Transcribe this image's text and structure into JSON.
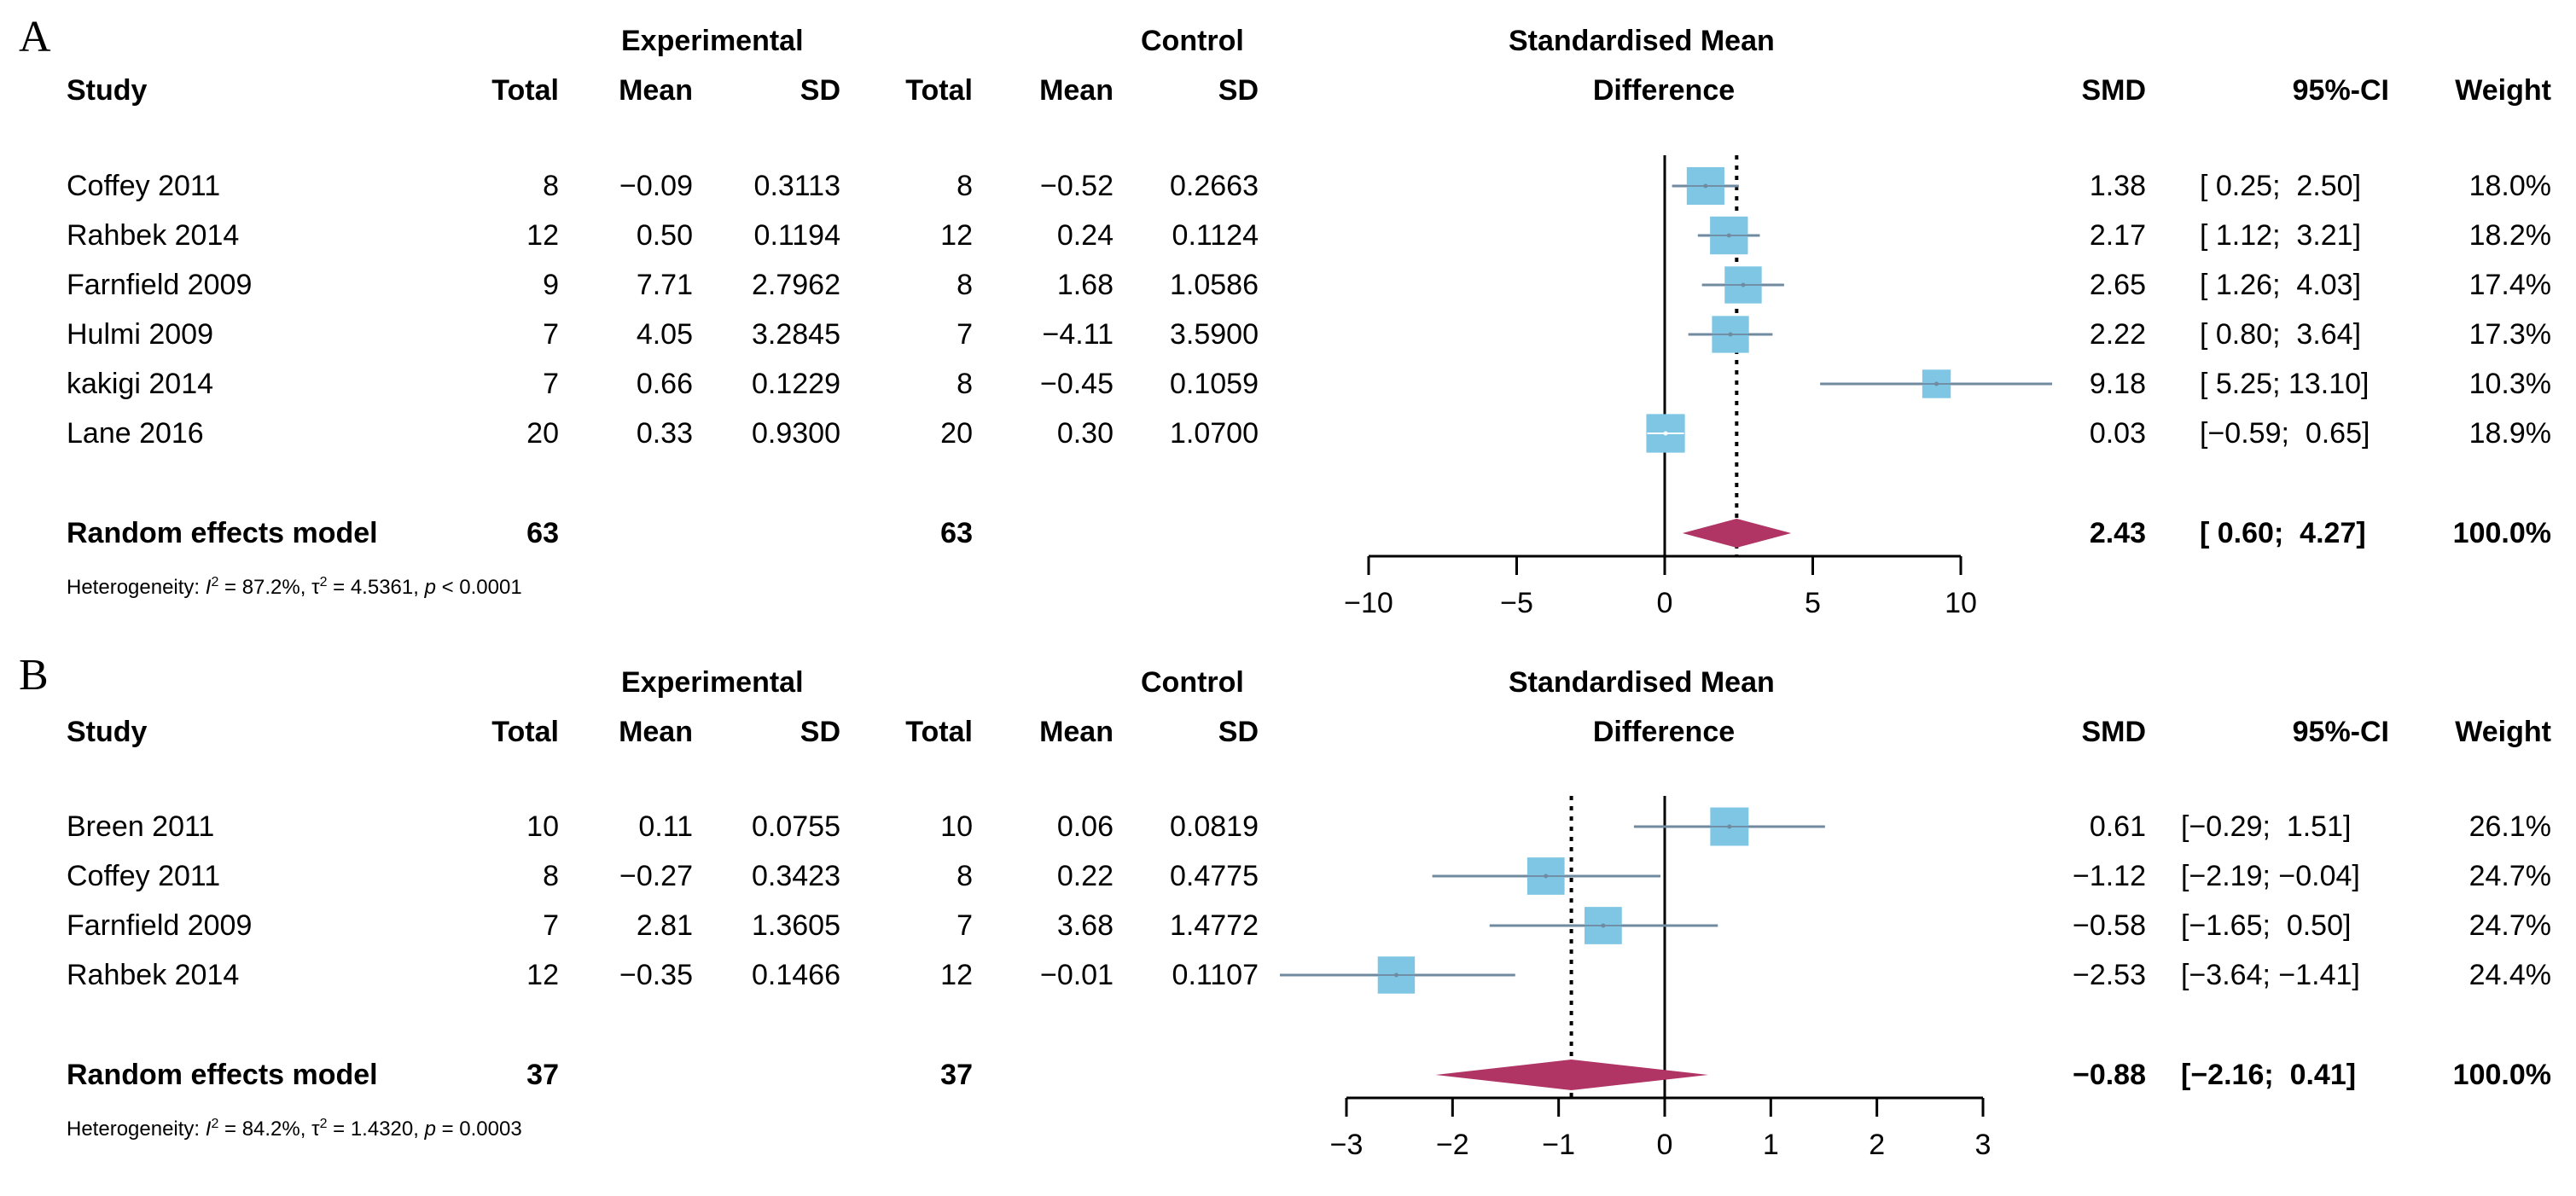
{
  "figure": {
    "letters": [
      "A",
      "B"
    ]
  },
  "headers": {
    "experimental": "Experimental",
    "control": "Control",
    "smd_title_1": "Standardised Mean",
    "smd_title_2": "Difference",
    "study": "Study",
    "total": "Total",
    "mean": "Mean",
    "sd": "SD",
    "smd": "SMD",
    "ci": "95%-CI",
    "weight": "Weight"
  },
  "colors": {
    "box": "#7FC6E4",
    "whisker": "#708AA0",
    "diamond": "#B03565"
  },
  "chart_data": [
    {
      "type": "forest",
      "panel": "A",
      "xlim": [
        -10,
        10
      ],
      "ticks": [
        -10,
        -5,
        0,
        5,
        10
      ],
      "tick_labels": [
        "−10",
        "−5",
        "0",
        "5",
        "10"
      ],
      "studies": [
        {
          "study": "Coffey 2011",
          "exp_total": "8",
          "exp_mean": "−0.09",
          "exp_sd": "0.3113",
          "ctl_total": "8",
          "ctl_mean": "−0.52",
          "ctl_sd": "0.2663",
          "smd_text": "1.38",
          "ci_text": "[ 0.25;  2.50]",
          "weight_text": "18.0%",
          "smd": 1.38,
          "lo": 0.25,
          "hi": 2.5,
          "w": 18.0
        },
        {
          "study": "Rahbek 2014",
          "exp_total": "12",
          "exp_mean": "0.50",
          "exp_sd": "0.1194",
          "ctl_total": "12",
          "ctl_mean": "0.24",
          "ctl_sd": "0.1124",
          "smd_text": "2.17",
          "ci_text": "[ 1.12;  3.21]",
          "weight_text": "18.2%",
          "smd": 2.17,
          "lo": 1.12,
          "hi": 3.21,
          "w": 18.2
        },
        {
          "study": "Farnfield 2009",
          "exp_total": "9",
          "exp_mean": "7.71",
          "exp_sd": "2.7962",
          "ctl_total": "8",
          "ctl_mean": "1.68",
          "ctl_sd": "1.0586",
          "smd_text": "2.65",
          "ci_text": "[ 1.26;  4.03]",
          "weight_text": "17.4%",
          "smd": 2.65,
          "lo": 1.26,
          "hi": 4.03,
          "w": 17.4
        },
        {
          "study": "Hulmi 2009",
          "exp_total": "7",
          "exp_mean": "4.05",
          "exp_sd": "3.2845",
          "ctl_total": "7",
          "ctl_mean": "−4.11",
          "ctl_sd": "3.5900",
          "smd_text": "2.22",
          "ci_text": "[ 0.80;  3.64]",
          "weight_text": "17.3%",
          "smd": 2.22,
          "lo": 0.8,
          "hi": 3.64,
          "w": 17.3
        },
        {
          "study": "kakigi 2014",
          "exp_total": "7",
          "exp_mean": "0.66",
          "exp_sd": "0.1229",
          "ctl_total": "8",
          "ctl_mean": "−0.45",
          "ctl_sd": "0.1059",
          "smd_text": "9.18",
          "ci_text": "[ 5.25; 13.10]",
          "weight_text": "10.3%",
          "smd": 9.18,
          "lo": 5.25,
          "hi": 13.1,
          "w": 10.3
        },
        {
          "study": "Lane 2016",
          "exp_total": "20",
          "exp_mean": "0.33",
          "exp_sd": "0.9300",
          "ctl_total": "20",
          "ctl_mean": "0.30",
          "ctl_sd": "1.0700",
          "smd_text": "0.03",
          "ci_text": "[−0.59;  0.65]",
          "weight_text": "18.9%",
          "smd": 0.03,
          "lo": -0.59,
          "hi": 0.65,
          "w": 18.9
        }
      ],
      "pooled": {
        "label": "Random effects model",
        "exp_total": "63",
        "ctl_total": "63",
        "smd_text": "2.43",
        "ci_text": "[ 0.60;  4.27]",
        "weight_text": "100.0%",
        "smd": 2.43,
        "lo": 0.6,
        "hi": 4.27
      },
      "heterogeneity": {
        "prefix": "Heterogeneity: ",
        "i2_symbol": "I",
        "i2": " = 87.2%, ",
        "tau2_symbol": "τ",
        "tau2": " = 4.5361, ",
        "p_symbol": "p",
        "p": " < 0.0001"
      }
    },
    {
      "type": "forest",
      "panel": "B",
      "xlim": [
        -3,
        3
      ],
      "ticks": [
        -3,
        -2,
        -1,
        0,
        1,
        2,
        3
      ],
      "tick_labels": [
        "−3",
        "−2",
        "−1",
        "0",
        "1",
        "2",
        "3"
      ],
      "studies": [
        {
          "study": "Breen 2011",
          "exp_total": "10",
          "exp_mean": "0.11",
          "exp_sd": "0.0755",
          "ctl_total": "10",
          "ctl_mean": "0.06",
          "ctl_sd": "0.0819",
          "smd_text": "0.61",
          "ci_text": "[−0.29;  1.51]",
          "weight_text": "26.1%",
          "smd": 0.61,
          "lo": -0.29,
          "hi": 1.51,
          "w": 26.1
        },
        {
          "study": "Coffey 2011",
          "exp_total": "8",
          "exp_mean": "−0.27",
          "exp_sd": "0.3423",
          "ctl_total": "8",
          "ctl_mean": "0.22",
          "ctl_sd": "0.4775",
          "smd_text": "−1.12",
          "ci_text": "[−2.19; −0.04]",
          "weight_text": "24.7%",
          "smd": -1.12,
          "lo": -2.19,
          "hi": -0.04,
          "w": 24.7
        },
        {
          "study": "Farnfield 2009",
          "exp_total": "7",
          "exp_mean": "2.81",
          "exp_sd": "1.3605",
          "ctl_total": "7",
          "ctl_mean": "3.68",
          "ctl_sd": "1.4772",
          "smd_text": "−0.58",
          "ci_text": "[−1.65;  0.50]",
          "weight_text": "24.7%",
          "smd": -0.58,
          "lo": -1.65,
          "hi": 0.5,
          "w": 24.7
        },
        {
          "study": "Rahbek 2014",
          "exp_total": "12",
          "exp_mean": "−0.35",
          "exp_sd": "0.1466",
          "ctl_total": "12",
          "ctl_mean": "−0.01",
          "ctl_sd": "0.1107",
          "smd_text": "−2.53",
          "ci_text": "[−3.64; −1.41]",
          "weight_text": "24.4%",
          "smd": -2.53,
          "lo": -3.64,
          "hi": -1.41,
          "w": 24.4
        }
      ],
      "pooled": {
        "label": "Random effects model",
        "exp_total": "37",
        "ctl_total": "37",
        "smd_text": "−0.88",
        "ci_text": "[−2.16;  0.41]",
        "weight_text": "100.0%",
        "smd": -0.88,
        "lo": -2.16,
        "hi": 0.41
      },
      "heterogeneity": {
        "prefix": "Heterogeneity: ",
        "i2_symbol": "I",
        "i2": " = 84.2%, ",
        "tau2_symbol": "τ",
        "tau2": " = 1.4320, ",
        "p_symbol": "p",
        "p": " = 0.0003"
      }
    }
  ]
}
